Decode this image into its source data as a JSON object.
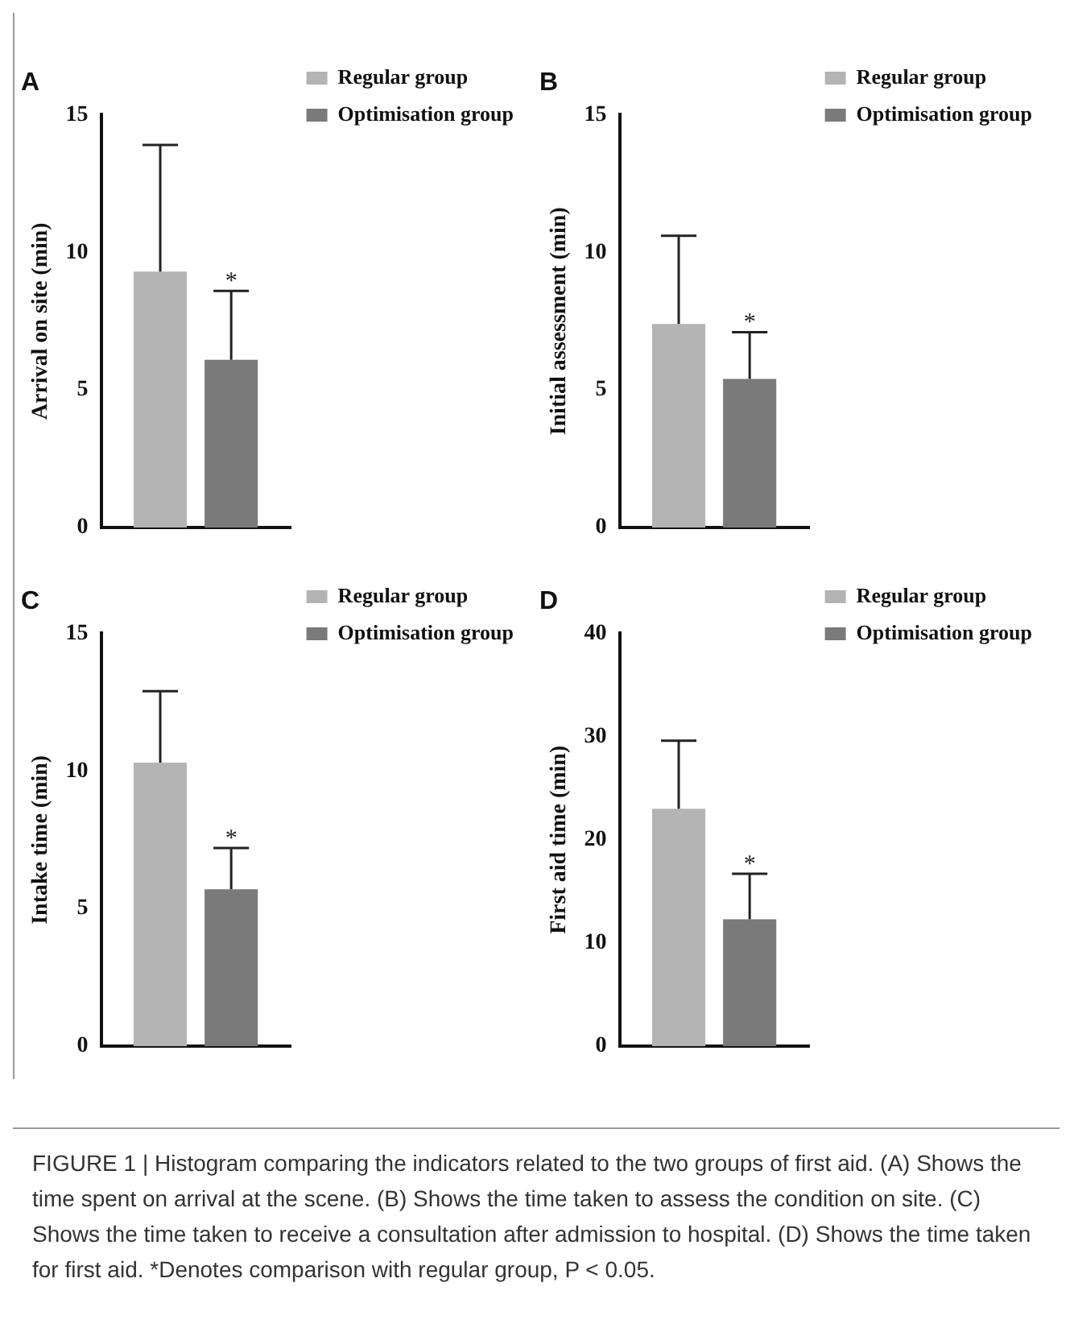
{
  "chart_data": [
    {
      "type": "bar",
      "title": "A",
      "ylabel": "Arrival on site (min)",
      "categories": [
        null
      ],
      "ylim": [
        0,
        15
      ],
      "yticks": [
        0,
        5,
        10,
        15
      ],
      "grid": false,
      "legend": "top right",
      "annotations": [
        {
          "text": "*",
          "y": 8.6
        }
      ],
      "series": [
        {
          "name": "Regular group",
          "color": "#b4b4b4",
          "values": [
            9.3
          ],
          "errors": [
            [
              9.3,
              13.9
            ]
          ]
        },
        {
          "name": "Optimisation group",
          "color": "#7a7a7a",
          "values": [
            6.1
          ],
          "errors": [
            [
              6.1,
              8.6
            ]
          ]
        }
      ]
    },
    {
      "type": "bar",
      "title": "B",
      "ylabel": "Initial assessment (min)",
      "categories": [
        null
      ],
      "ylim": [
        0,
        15
      ],
      "yticks": [
        0,
        5,
        10,
        15
      ],
      "grid": false,
      "legend": "top right",
      "annotations": [
        {
          "text": "*",
          "y": 7.1
        }
      ],
      "series": [
        {
          "name": "Regular group",
          "color": "#b4b4b4",
          "values": [
            7.4
          ],
          "errors": [
            [
              7.4,
              10.6
            ]
          ]
        },
        {
          "name": "Optimisation group",
          "color": "#7a7a7a",
          "values": [
            5.4
          ],
          "errors": [
            [
              5.4,
              7.1
            ]
          ]
        }
      ]
    },
    {
      "type": "bar",
      "title": "C",
      "ylabel": "Intake time (min)",
      "categories": [
        null
      ],
      "ylim": [
        0,
        15
      ],
      "yticks": [
        0,
        5,
        10,
        15
      ],
      "grid": false,
      "legend": "top right",
      "annotations": [
        {
          "text": "*",
          "y": 7.2
        }
      ],
      "series": [
        {
          "name": "Regular group",
          "color": "#b4b4b4",
          "values": [
            10.3
          ],
          "errors": [
            [
              10.3,
              12.9
            ]
          ]
        },
        {
          "name": "Optimisation group",
          "color": "#7a7a7a",
          "values": [
            5.7
          ],
          "errors": [
            [
              5.7,
              7.2
            ]
          ]
        }
      ]
    },
    {
      "type": "bar",
      "title": "D",
      "ylabel": "First aid time (min)",
      "categories": [
        null
      ],
      "ylim": [
        0,
        40
      ],
      "yticks": [
        0,
        10,
        20,
        30,
        40
      ],
      "grid": false,
      "legend": "top right",
      "annotations": [
        {
          "text": "*",
          "y": 16.7
        },
        "FIGURE 1 | Histogram comparing the indicators related to the two groups of first aid. (A) Shows the time spent on arrival at the scene. (B) Shows the time taken to assess the condition on site. (C) Shows the time taken to receive a consultation after admission to hospital. (D) Shows the time taken for first aid. *Denotes comparison with regular group, P < 0.05."
      ],
      "series": [
        {
          "name": "Regular group",
          "color": "#b4b4b4",
          "values": [
            23
          ],
          "errors": [
            [
              23,
              29.6
            ]
          ]
        },
        {
          "name": "Optimisation group",
          "color": "#7a7a7a",
          "values": [
            12.3
          ],
          "errors": [
            [
              12.3,
              16.7
            ]
          ]
        }
      ]
    }
  ]
}
